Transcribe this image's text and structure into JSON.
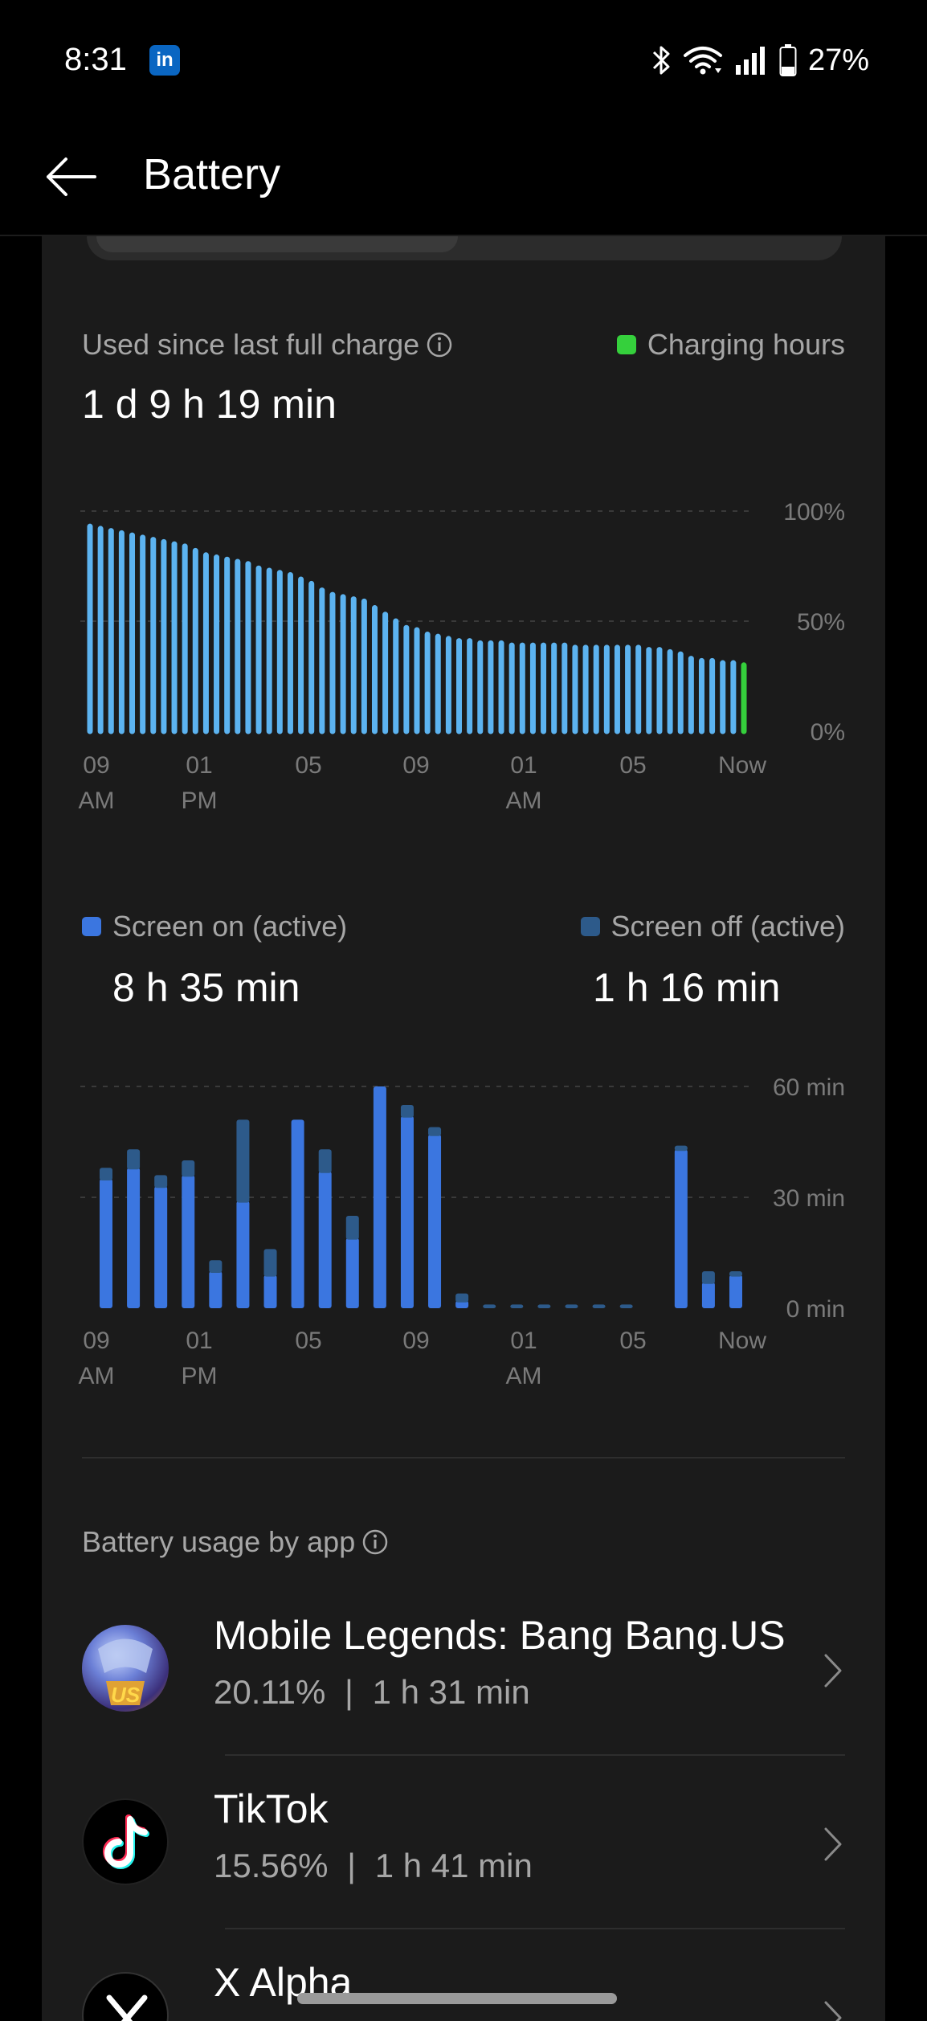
{
  "status_bar": {
    "time": "8:31",
    "notification_app": "in",
    "battery_pct": "27%",
    "icons": [
      "bluetooth-icon",
      "wifi-icon",
      "signal-icon",
      "battery-icon"
    ]
  },
  "app_bar": {
    "title": "Battery",
    "back_icon": "arrow-left-icon"
  },
  "summary": {
    "used_label": "Used since last full charge",
    "used_value": "1 d 9 h 19 min",
    "charging_legend": "Charging hours"
  },
  "colors": {
    "background": "#000000",
    "card": "#1b1b1b",
    "battery_bar": "#5cb3f0",
    "battery_bar_dark": "#3a77d6",
    "charging": "#35d03c",
    "screen_on": "#3b76e0",
    "screen_off": "#2d5a8a",
    "secondary_text": "#a6a6a6",
    "axis_text": "#7a7a7a"
  },
  "chart_data": [
    {
      "type": "bar",
      "y_ticks": [
        "100%",
        "50%",
        "0%"
      ],
      "ylim": [
        0,
        100
      ],
      "x_ticks": [
        [
          "09",
          "AM"
        ],
        [
          "01",
          "PM"
        ],
        [
          "05",
          ""
        ],
        [
          "09",
          ""
        ],
        [
          "01",
          "AM"
        ],
        [
          "05",
          ""
        ],
        [
          "Now",
          ""
        ]
      ],
      "series": [
        {
          "values": [
            93,
            92,
            91,
            90,
            89,
            88,
            87,
            86,
            85,
            84,
            82,
            80,
            79,
            78,
            77,
            76,
            74,
            73,
            72,
            71,
            69,
            67,
            64,
            62,
            61,
            60,
            59,
            56,
            53,
            50,
            47,
            46,
            44,
            43,
            42,
            41,
            41,
            40,
            40,
            40,
            39,
            39,
            39,
            39,
            39,
            39,
            38,
            38,
            38,
            38,
            38,
            38,
            38,
            37,
            37,
            36,
            35,
            33,
            32,
            32,
            31,
            31
          ]
        },
        {
          "name": "Charging hours",
          "values": [
            30
          ]
        }
      ]
    },
    {
      "type": "bar",
      "y_ticks": [
        "60 min",
        "30 min",
        "0 min"
      ],
      "ylim": [
        0,
        60
      ],
      "x_ticks": [
        [
          "09",
          "AM"
        ],
        [
          "01",
          "PM"
        ],
        [
          "05",
          ""
        ],
        [
          "09",
          ""
        ],
        [
          "01",
          "AM"
        ],
        [
          "05",
          ""
        ],
        [
          "Now",
          ""
        ]
      ],
      "series": [
        {
          "name": "Screen on (active)",
          "values": [
            35,
            38,
            33,
            36,
            10,
            29,
            9,
            51,
            37,
            19,
            60,
            52,
            47,
            2,
            0,
            0,
            0,
            0,
            0,
            0,
            0,
            43,
            7,
            9
          ]
        },
        {
          "name": "Screen off (active)",
          "values": [
            3,
            5,
            3,
            4,
            3,
            22,
            7,
            0,
            6,
            6,
            0,
            3,
            2,
            2,
            1,
            1,
            1,
            1,
            1,
            1,
            0,
            1,
            3,
            1
          ]
        }
      ]
    }
  ],
  "screen": {
    "on_label": "Screen on (active)",
    "on_value": "8 h 35 min",
    "off_label": "Screen off (active)",
    "off_value": "1 h 16 min"
  },
  "usage": {
    "label": "Battery usage by app",
    "apps": [
      {
        "name": "Mobile Legends: Bang Bang.US",
        "percent": "20.11%",
        "sep": "|",
        "time": "1 h 31 min",
        "icon": "mobile-legends-icon"
      },
      {
        "name": "TikTok",
        "percent": "15.56%",
        "sep": "|",
        "time": "1 h 41 min",
        "icon": "tiktok-icon"
      },
      {
        "name": "X Alpha",
        "percent": "",
        "sep": "",
        "time": "",
        "icon": "x-icon"
      }
    ]
  }
}
